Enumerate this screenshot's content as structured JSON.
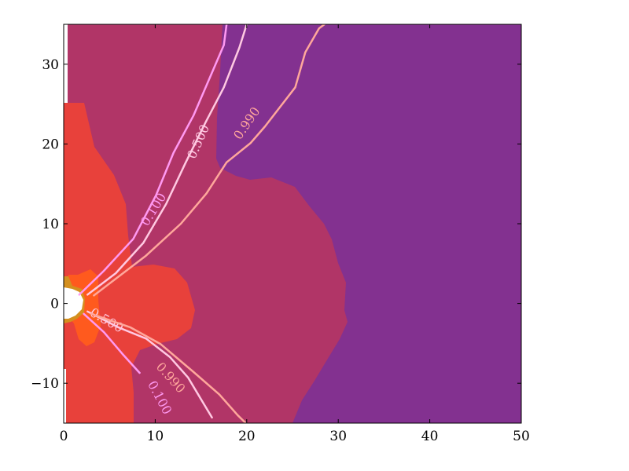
{
  "chart_data": {
    "type": "contour",
    "title": "",
    "xlabel": "",
    "ylabel": "",
    "xlim": [
      0,
      50
    ],
    "ylim": [
      -15,
      35
    ],
    "x_ticks": [
      0,
      10,
      20,
      30,
      40,
      50
    ],
    "y_ticks": [
      -10,
      0,
      10,
      20,
      30
    ],
    "x_tick_labels": [
      "0",
      "10",
      "20",
      "30",
      "40",
      "50"
    ],
    "y_tick_labels": [
      "−10",
      "0",
      "10",
      "20",
      "30"
    ],
    "grid": false,
    "legend": "none",
    "filled_regions": [
      {
        "name": "purple",
        "color": "#833190"
      },
      {
        "name": "magenta",
        "color": "#B13567"
      },
      {
        "name": "red",
        "color": "#E8413B"
      },
      {
        "name": "orange",
        "color": "#FF5A1E"
      },
      {
        "name": "gold",
        "color": "#D4901F"
      }
    ],
    "contour_lines": [
      {
        "level": 0.1,
        "label": "0.100",
        "color": "#FF99F2",
        "upper": [
          [
            1.7,
            1.1
          ],
          [
            4.4,
            4.1
          ],
          [
            7.6,
            8.1
          ],
          [
            10.1,
            13.6
          ],
          [
            12.0,
            18.9
          ],
          [
            14.2,
            23.6
          ],
          [
            16.0,
            28.4
          ],
          [
            17.5,
            32.4
          ],
          [
            17.8,
            35
          ]
        ],
        "lower": [
          [
            2.2,
            -1.3
          ],
          [
            4.4,
            -3.6
          ],
          [
            6.4,
            -6.3
          ],
          [
            8.3,
            -8.7
          ]
        ],
        "labels": [
          {
            "x": 9.8,
            "y": 11.8,
            "angle": -58
          },
          {
            "x": 10.5,
            "y": -11.8,
            "angle": 62
          }
        ]
      },
      {
        "level": 0.5,
        "label": "0.500",
        "color": "#FFC9E2",
        "upper": [
          [
            2.6,
            1.1
          ],
          [
            5.7,
            3.8
          ],
          [
            8.7,
            7.6
          ],
          [
            11.2,
            12.5
          ],
          [
            13.3,
            17.6
          ],
          [
            15.5,
            22.7
          ],
          [
            17.5,
            27.1
          ],
          [
            19.2,
            32.1
          ],
          [
            20.0,
            35
          ]
        ],
        "lower": [
          [
            2.6,
            -1.0
          ],
          [
            6.0,
            -3.0
          ],
          [
            9.0,
            -4.4
          ],
          [
            11.6,
            -6.7
          ],
          [
            13.6,
            -9.3
          ],
          [
            15.0,
            -12.0
          ],
          [
            16.2,
            -14.3
          ]
        ],
        "labels": [
          {
            "x": 14.7,
            "y": 20.3,
            "angle": -66
          },
          {
            "x": 4.7,
            "y": -2.1,
            "angle": 30
          }
        ]
      },
      {
        "level": 0.99,
        "label": "0.990",
        "color": "#FFA79B",
        "upper": [
          [
            3.3,
            1.0
          ],
          [
            9.0,
            6.0
          ],
          [
            12.8,
            10.0
          ],
          [
            15.6,
            13.8
          ],
          [
            17.8,
            17.7
          ],
          [
            20.4,
            20.1
          ],
          [
            22.0,
            22.2
          ],
          [
            25.3,
            27.1
          ],
          [
            26.4,
            31.5
          ],
          [
            27.9,
            34.5
          ],
          [
            28.5,
            35
          ]
        ],
        "lower": [
          [
            3.0,
            -1.3
          ],
          [
            7.3,
            -3.0
          ],
          [
            10.6,
            -5.1
          ],
          [
            14.2,
            -8.6
          ],
          [
            17.0,
            -11.4
          ],
          [
            19.0,
            -14.0
          ],
          [
            19.9,
            -15
          ]
        ],
        "labels": [
          {
            "x": 20.0,
            "y": 22.6,
            "angle": -56
          },
          {
            "x": 11.7,
            "y": -9.3,
            "angle": 48
          }
        ]
      }
    ]
  }
}
